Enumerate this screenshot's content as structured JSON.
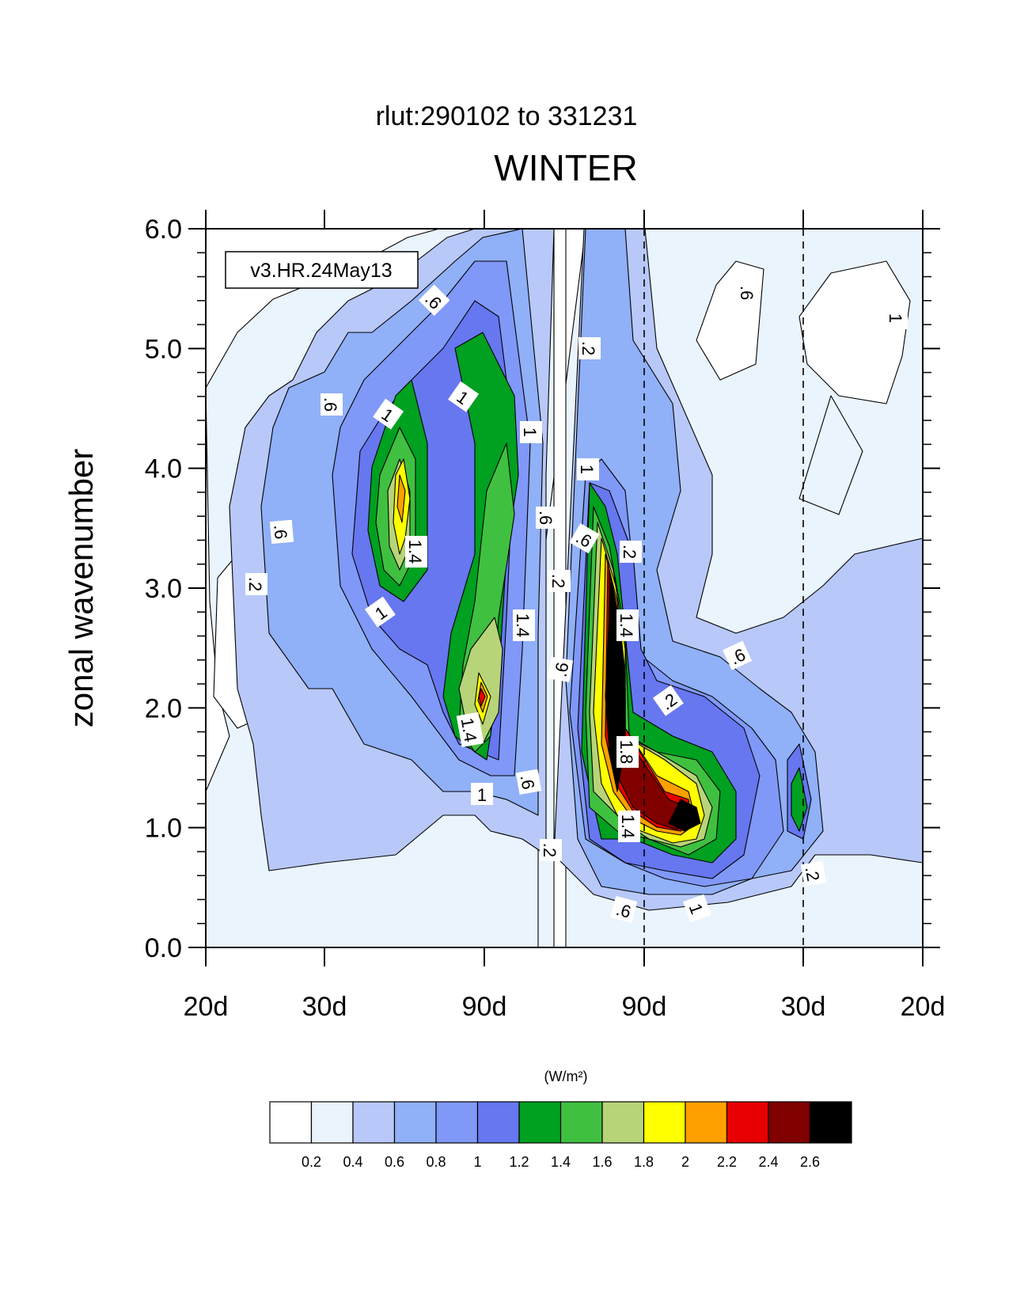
{
  "chart_data": {
    "type": "heatmap",
    "title": "WINTER",
    "subtitle": "rlut:290102 to 331231",
    "ylabel": "zonal wavenumber",
    "xlabel": "",
    "annotation": "v3.HR.24May13",
    "units_label": "(W/m²)",
    "ylim": [
      0,
      6
    ],
    "y_ticks": [
      "0.0",
      "1.0",
      "2.0",
      "3.0",
      "4.0",
      "5.0",
      "6.0"
    ],
    "x_ticks": [
      "20d",
      "30d",
      "90d",
      "90d",
      "30d",
      "20d"
    ],
    "colorbar": {
      "levels": [
        "0.2",
        "0.4",
        "0.6",
        "0.8",
        "1",
        "1.2",
        "1.4",
        "1.6",
        "1.8",
        "2",
        "2.2",
        "2.4",
        "2.6"
      ],
      "colors": [
        "#ffffff",
        "#eaf4fd",
        "#b8c8f8",
        "#90b0f8",
        "#8098f8",
        "#6677f0",
        "#00a020",
        "#40c040",
        "#b8d478",
        "#ffff00",
        "#ffa000",
        "#e80000",
        "#800000",
        "#000000"
      ]
    },
    "contour_labels": [
      {
        "text": ".6"
      },
      {
        "text": ".6"
      },
      {
        "text": "1"
      },
      {
        "text": "1"
      },
      {
        "text": "1"
      },
      {
        "text": ".6"
      },
      {
        "text": "1.4"
      },
      {
        "text": ".2"
      },
      {
        "text": "1"
      },
      {
        "text": ".6"
      },
      {
        "text": "1.4"
      },
      {
        "text": "1.4"
      },
      {
        "text": "1"
      },
      {
        "text": ".6"
      },
      {
        "text": ".2"
      },
      {
        "text": ".2"
      },
      {
        "text": ".6"
      },
      {
        "text": "1"
      },
      {
        "text": ".6"
      },
      {
        "text": ".2"
      },
      {
        "text": "1.4"
      },
      {
        "text": ".2"
      },
      {
        "text": ".6"
      },
      {
        "text": "1"
      },
      {
        "text": "1.8"
      },
      {
        "text": "1.4"
      },
      {
        "text": ".6"
      },
      {
        "text": "1"
      },
      {
        "text": ".6"
      },
      {
        "text": ".2"
      },
      {
        "text": ".2"
      }
    ],
    "dashed_lines_at": [
      "90d",
      "30d"
    ]
  }
}
